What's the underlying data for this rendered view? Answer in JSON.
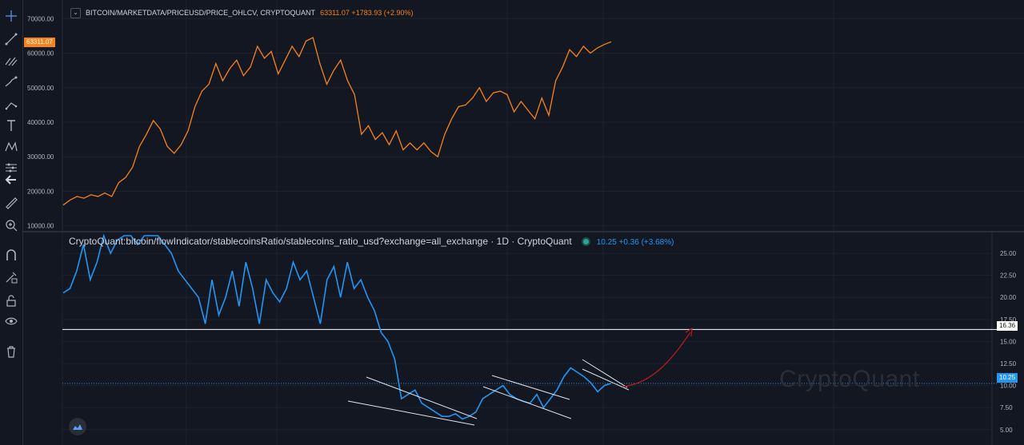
{
  "toolbar": {
    "items": [
      "crosshair-icon",
      "trend-line-icon",
      "fib-icon",
      "brush-icon",
      "path-icon",
      "text-icon",
      "pattern-icon",
      "forecast-icon",
      "back-arrow-icon",
      "ruler-icon",
      "zoom-icon",
      "magnet-icon",
      "lock-drawing-icon",
      "lock-icon",
      "eye-icon",
      "trash-icon"
    ]
  },
  "pane1": {
    "collapse": "⌄",
    "symbol": "BITCOIN/MARKETDATA/PRICEUSD/PRICE_OHLCV, CRYPTOQUANT",
    "values": "63311.07 +1783.93 (+2.90%)",
    "last_price_label": "63311.07",
    "color": "#f7821b"
  },
  "pane2": {
    "title": "CryptoQuant:bitcoin/flowIndicator/stablecoinsRatio/stablecoins_ratio_usd?exchange=all_exchange · 1D · CryptoQuant",
    "values": "10.25 +0.36 (+3.68%)",
    "last_value_label": "10.25",
    "level_label": "16.36",
    "color": "#2196f3"
  },
  "watermark": "CryptoQuant",
  "chart_data": [
    {
      "type": "line",
      "name": "BITCOIN/MARKETDATA/PRICEUSD/PRICE_OHLCV, CRYPTOQUANT",
      "yaxis_ticks": [
        "10000.00",
        "20000.00",
        "30000.00",
        "40000.00",
        "50000.00",
        "60000.00",
        "70000.00"
      ],
      "ylim": [
        9000,
        74000
      ],
      "y_axis_side": "left",
      "last_value": 63311.07,
      "values": [
        16000,
        17500,
        18500,
        18000,
        19000,
        18500,
        19500,
        18500,
        22500,
        24000,
        27000,
        33000,
        36500,
        40500,
        38000,
        33000,
        31000,
        33500,
        37500,
        44500,
        49000,
        51000,
        57000,
        52000,
        55500,
        58000,
        53500,
        56000,
        62000,
        58500,
        60500,
        54000,
        58000,
        62000,
        59000,
        63500,
        64500,
        57000,
        51000,
        55000,
        58000,
        52000,
        48000,
        36500,
        39000,
        35000,
        37000,
        33500,
        37500,
        32000,
        34000,
        32000,
        34000,
        31500,
        30000,
        36500,
        41000,
        44500,
        45000,
        47000,
        50000,
        46000,
        48500,
        49000,
        48000,
        43000,
        46000,
        43500,
        41000,
        47000,
        42000,
        52000,
        56000,
        61000,
        59000,
        62000,
        60000,
        61500,
        62500,
        63300
      ]
    },
    {
      "type": "line",
      "name": "CryptoQuant:bitcoin/flowIndicator/stablecoinsRatio/stablecoins_ratio_usd?exchange=all_exchange",
      "yaxis_ticks": [
        "5.00",
        "7.50",
        "10.00",
        "12.50",
        "15.00",
        "17.50",
        "20.00",
        "22.50",
        "25.00"
      ],
      "ylim": [
        3.8,
        27
      ],
      "y_axis_side": "right",
      "last_value": 10.25,
      "horizontal_level": 16.36,
      "values": [
        20.5,
        21,
        23,
        26,
        22,
        24,
        27,
        25,
        26.5,
        27,
        28,
        26,
        27,
        28,
        27.5,
        26,
        25,
        23,
        22,
        21,
        20,
        17,
        22,
        18,
        20,
        23,
        19,
        24,
        21,
        17,
        22,
        20.5,
        19.5,
        21,
        24,
        22,
        23,
        20,
        17,
        22,
        23.5,
        20,
        24,
        21,
        22,
        20,
        18.5,
        16,
        15,
        13,
        8.5,
        9,
        9.5,
        8,
        7.5,
        7,
        6.5,
        6.5,
        6.8,
        6.2,
        6.5,
        7,
        8.5,
        9,
        9.5,
        10,
        9,
        8.5,
        8.2,
        8,
        9,
        7.5,
        8.5,
        9.5,
        11,
        12,
        11.5,
        11,
        10.3,
        9.3,
        10,
        10.25
      ]
    }
  ]
}
